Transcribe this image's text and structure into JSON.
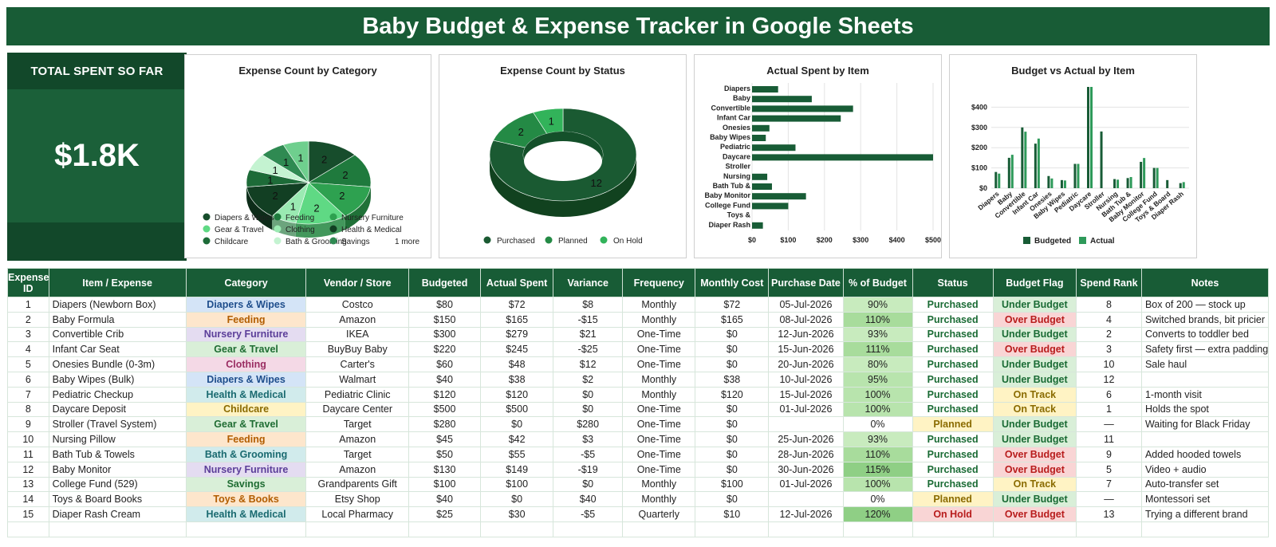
{
  "title": "Baby Budget & Expense Tracker in Google Sheets",
  "kpi": {
    "label": "TOTAL SPENT SO FAR",
    "value": "$1.8K"
  },
  "colors": {
    "dark_green": "#185c36",
    "mid_green": "#2e9a4e",
    "light_green": "#87e3a0",
    "under_budget_bg": "#d9efd8",
    "over_budget_bg": "#f9d5d5",
    "on_track_bg": "#fff3c4"
  },
  "charts": {
    "category_title": "Expense Count by Category",
    "status_title": "Expense Count by Status",
    "actual_title": "Actual Spent by Item",
    "bva_title": "Budget vs Actual by Item"
  },
  "chart_data": [
    {
      "type": "pie",
      "title": "Expense Count by Category",
      "slices": [
        {
          "label": "Diapers & Wipes",
          "value": 2,
          "color": "#174d2c"
        },
        {
          "label": "Feeding",
          "value": 2,
          "color": "#1f7a3d"
        },
        {
          "label": "Nursery Furniture",
          "value": 2,
          "color": "#2ea150"
        },
        {
          "label": "Gear & Travel",
          "value": 2,
          "color": "#5fd984"
        },
        {
          "label": "Clothing",
          "value": 1,
          "color": "#9aeab2"
        },
        {
          "label": "Health & Medical",
          "value": 2,
          "color": "#123f23"
        },
        {
          "label": "Childcare",
          "value": 1,
          "color": "#1d6b38"
        },
        {
          "label": "Bath & Grooming",
          "value": 1,
          "color": "#c4f3d1"
        },
        {
          "label": "Savings",
          "value": 1,
          "color": "#2f8a52"
        },
        {
          "label": "Toys & Books",
          "value": 1,
          "color": "#6fcf8e"
        }
      ],
      "legend_more": "1 more"
    },
    {
      "type": "pie",
      "title": "Expense Count by Status",
      "slices": [
        {
          "label": "Purchased",
          "value": 12,
          "color": "#1a5a32"
        },
        {
          "label": "Planned",
          "value": 2,
          "color": "#248a45"
        },
        {
          "label": "On Hold",
          "value": 1,
          "color": "#32b35a"
        }
      ]
    },
    {
      "type": "bar",
      "title": "Actual Spent by Item",
      "categories": [
        "Diapers",
        "Baby",
        "Convertible",
        "Infant Car",
        "Onesies",
        "Baby Wipes",
        "Pediatric",
        "Daycare",
        "Stroller",
        "Nursing",
        "Bath Tub &",
        "Baby Monitor",
        "College Fund",
        "Toys &",
        "Diaper Rash"
      ],
      "values": [
        72,
        165,
        279,
        245,
        48,
        38,
        120,
        500,
        0,
        42,
        55,
        149,
        100,
        0,
        30
      ],
      "xticks": [
        "$0",
        "$100",
        "$200",
        "$300",
        "$400",
        "$500"
      ],
      "xlim": [
        0,
        500
      ]
    },
    {
      "type": "bar",
      "title": "Budget vs Actual by Item",
      "categories": [
        "Diapers",
        "Baby",
        "Convertible",
        "Infant Car",
        "Onesies",
        "Baby Wipes",
        "Pediatric",
        "Daycare",
        "Stroller",
        "Nursing",
        "Bath Tub &",
        "Baby Monitor",
        "College Fund",
        "Toys & Board",
        "Diaper Rash"
      ],
      "series": [
        {
          "name": "Budgeted",
          "values": [
            80,
            150,
            300,
            220,
            60,
            40,
            120,
            500,
            280,
            45,
            50,
            130,
            100,
            40,
            25
          ],
          "color": "#185c36"
        },
        {
          "name": "Actual",
          "values": [
            72,
            165,
            279,
            245,
            48,
            38,
            120,
            500,
            0,
            42,
            55,
            149,
            100,
            0,
            30
          ],
          "color": "#2e9a5a"
        }
      ],
      "yticks": [
        "$0",
        "$100",
        "$200",
        "$300",
        "$400"
      ],
      "ylim": [
        0,
        500
      ]
    }
  ],
  "table": {
    "headers": [
      "Expense ID",
      "Item / Expense",
      "Category",
      "Vendor / Store",
      "Budgeted",
      "Actual Spent",
      "Variance",
      "Frequency",
      "Monthly Cost",
      "Purchase Date",
      "% of Budget",
      "Status",
      "Budget Flag",
      "Spend Rank",
      "Notes"
    ],
    "rows": [
      [
        "1",
        "Diapers (Newborn Box)",
        "Diapers & Wipes",
        "Costco",
        "$80",
        "$72",
        "$8",
        "Monthly",
        "$72",
        "05-Jul-2026",
        "90%",
        "Purchased",
        "Under Budget",
        "8",
        "Box of 200 — stock up"
      ],
      [
        "2",
        "Baby Formula",
        "Feeding",
        "Amazon",
        "$150",
        "$165",
        "-$15",
        "Monthly",
        "$165",
        "08-Jul-2026",
        "110%",
        "Purchased",
        "Over Budget",
        "4",
        "Switched brands, bit pricier"
      ],
      [
        "3",
        "Convertible Crib",
        "Nursery Furniture",
        "IKEA",
        "$300",
        "$279",
        "$21",
        "One-Time",
        "$0",
        "12-Jun-2026",
        "93%",
        "Purchased",
        "Under Budget",
        "2",
        "Converts to toddler bed"
      ],
      [
        "4",
        "Infant Car Seat",
        "Gear & Travel",
        "BuyBuy Baby",
        "$220",
        "$245",
        "-$25",
        "One-Time",
        "$0",
        "15-Jun-2026",
        "111%",
        "Purchased",
        "Over Budget",
        "3",
        "Safety first — extra padding"
      ],
      [
        "5",
        "Onesies Bundle (0-3m)",
        "Clothing",
        "Carter's",
        "$60",
        "$48",
        "$12",
        "One-Time",
        "$0",
        "20-Jun-2026",
        "80%",
        "Purchased",
        "Under Budget",
        "10",
        "Sale haul"
      ],
      [
        "6",
        "Baby Wipes (Bulk)",
        "Diapers & Wipes",
        "Walmart",
        "$40",
        "$38",
        "$2",
        "Monthly",
        "$38",
        "10-Jul-2026",
        "95%",
        "Purchased",
        "Under Budget",
        "12",
        ""
      ],
      [
        "7",
        "Pediatric Checkup",
        "Health & Medical",
        "Pediatric Clinic",
        "$120",
        "$120",
        "$0",
        "Monthly",
        "$120",
        "15-Jul-2026",
        "100%",
        "Purchased",
        "On Track",
        "6",
        "1-month visit"
      ],
      [
        "8",
        "Daycare Deposit",
        "Childcare",
        "Daycare Center",
        "$500",
        "$500",
        "$0",
        "One-Time",
        "$0",
        "01-Jul-2026",
        "100%",
        "Purchased",
        "On Track",
        "1",
        "Holds the spot"
      ],
      [
        "9",
        "Stroller (Travel System)",
        "Gear & Travel",
        "Target",
        "$280",
        "$0",
        "$280",
        "One-Time",
        "$0",
        "",
        "0%",
        "Planned",
        "Under Budget",
        "—",
        "Waiting for Black Friday"
      ],
      [
        "10",
        "Nursing Pillow",
        "Feeding",
        "Amazon",
        "$45",
        "$42",
        "$3",
        "One-Time",
        "$0",
        "25-Jun-2026",
        "93%",
        "Purchased",
        "Under Budget",
        "11",
        ""
      ],
      [
        "11",
        "Bath Tub & Towels",
        "Bath & Grooming",
        "Target",
        "$50",
        "$55",
        "-$5",
        "One-Time",
        "$0",
        "28-Jun-2026",
        "110%",
        "Purchased",
        "Over Budget",
        "9",
        "Added hooded towels"
      ],
      [
        "12",
        "Baby Monitor",
        "Nursery Furniture",
        "Amazon",
        "$130",
        "$149",
        "-$19",
        "One-Time",
        "$0",
        "30-Jun-2026",
        "115%",
        "Purchased",
        "Over Budget",
        "5",
        "Video + audio"
      ],
      [
        "13",
        "College Fund (529)",
        "Savings",
        "Grandparents Gift",
        "$100",
        "$100",
        "$0",
        "Monthly",
        "$100",
        "01-Jul-2026",
        "100%",
        "Purchased",
        "On Track",
        "7",
        "Auto-transfer set"
      ],
      [
        "14",
        "Toys & Board Books",
        "Toys & Books",
        "Etsy Shop",
        "$40",
        "$0",
        "$40",
        "Monthly",
        "$0",
        "",
        "0%",
        "Planned",
        "Under Budget",
        "—",
        "Montessori set"
      ],
      [
        "15",
        "Diaper Rash Cream",
        "Health & Medical",
        "Local Pharmacy",
        "$25",
        "$30",
        "-$5",
        "Quarterly",
        "$10",
        "12-Jul-2026",
        "120%",
        "On Hold",
        "Over Budget",
        "13",
        "Trying a different brand"
      ]
    ],
    "category_styles": {
      "Diapers & Wipes": {
        "bg": "#d4e4f7",
        "fg": "#1f4e8c"
      },
      "Feeding": {
        "bg": "#fde6cc",
        "fg": "#b25d00"
      },
      "Nursery Furniture": {
        "bg": "#e4dcf1",
        "fg": "#5b3e99"
      },
      "Gear & Travel": {
        "bg": "#d9efd8",
        "fg": "#1f6d33"
      },
      "Clothing": {
        "bg": "#f4d9e6",
        "fg": "#9a2d62"
      },
      "Health & Medical": {
        "bg": "#d1ebec",
        "fg": "#1a6a70"
      },
      "Childcare": {
        "bg": "#fff3c4",
        "fg": "#8a6b00"
      },
      "Bath & Grooming": {
        "bg": "#d1ebec",
        "fg": "#1a6a70"
      },
      "Savings": {
        "bg": "#d9efd8",
        "fg": "#1f6d33"
      },
      "Toys & Books": {
        "bg": "#fde6cc",
        "fg": "#b25d00"
      }
    }
  }
}
